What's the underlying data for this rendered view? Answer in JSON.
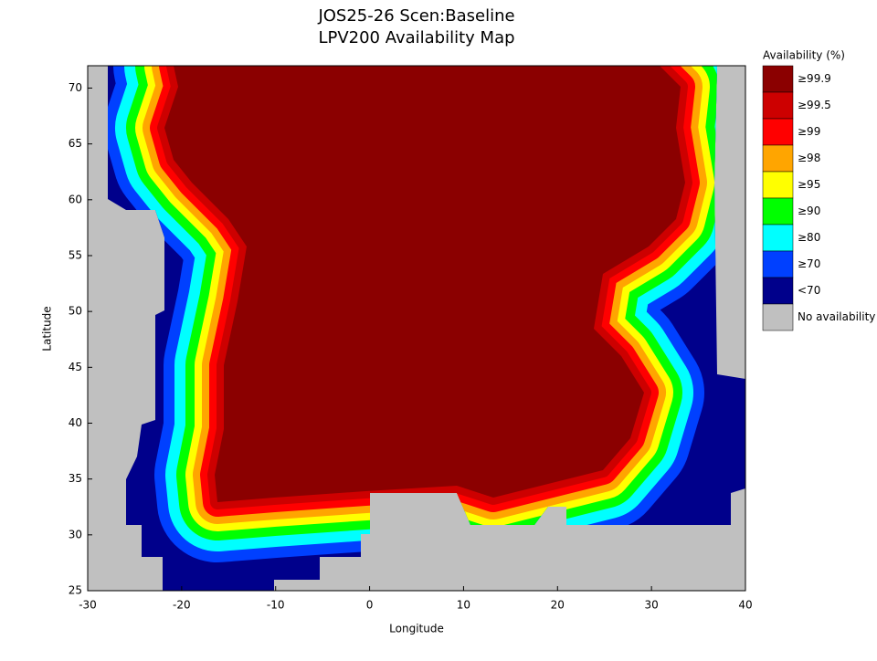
{
  "chart_data": {
    "type": "map",
    "title": [
      "JOS25-26 Scen:Baseline",
      "LPV200 Availability Map"
    ],
    "x_label": "Longitude",
    "y_label": "Latitude",
    "xlim": [
      -30,
      40
    ],
    "xticks": [
      -30,
      -20,
      -10,
      0,
      10,
      20,
      30,
      40
    ],
    "ylim": [
      25,
      72
    ],
    "yticks": [
      25,
      30,
      35,
      40,
      45,
      50,
      55,
      60,
      65,
      70
    ],
    "legend": {
      "title": "Availability (%)",
      "entries": [
        {
          "label": "≥99.9",
          "color": "#8b0000"
        },
        {
          "label": "≥99.5",
          "color": "#cd0000"
        },
        {
          "label": "≥99",
          "color": "#ff0000"
        },
        {
          "label": "≥98",
          "color": "#ffa500"
        },
        {
          "label": "≥95",
          "color": "#ffff00"
        },
        {
          "label": "≥90",
          "color": "#00ff00"
        },
        {
          "label": "≥80",
          "color": "#00ffff"
        },
        {
          "label": "≥70",
          "color": "#0040ff"
        },
        {
          "label": "<70",
          "color": "#00008b"
        },
        {
          "label": "No availability",
          "color": "#c0c0c0"
        }
      ]
    }
  }
}
